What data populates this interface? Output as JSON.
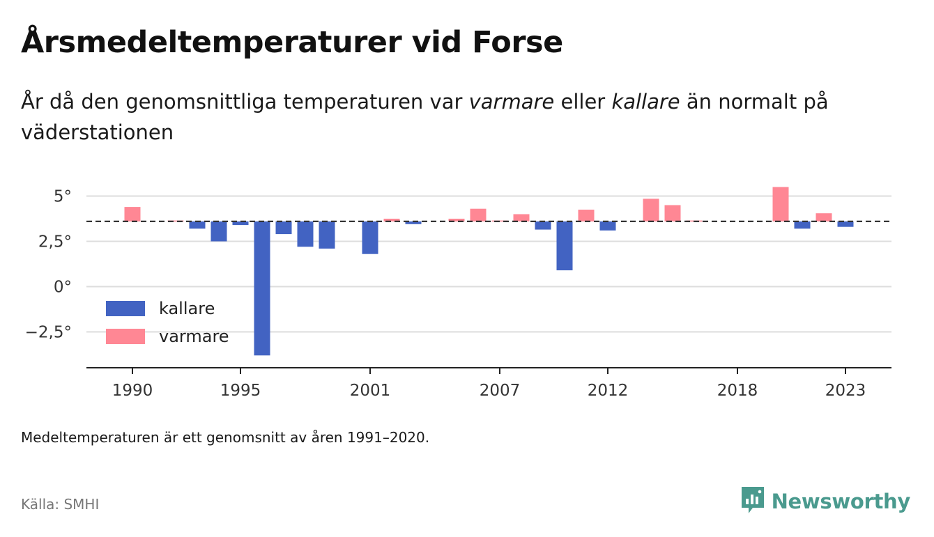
{
  "title": "Årsmedeltemperaturer vid Forse",
  "subtitle": {
    "part1": "År då den genomsnittliga temperaturen var ",
    "warm_word": "varmare",
    "part2": " eller ",
    "cold_word": "kallare",
    "part3": " än normalt på väderstationen"
  },
  "note": "Medeltemperaturen är ett genomsnitt av åren 1991–2020.",
  "source": "Källa: SMHI",
  "brand": {
    "name": "Newsworthy",
    "icon": "newsworthy-logo-icon"
  },
  "colors": {
    "cold": "#4263c2",
    "warm": "#ff8794",
    "grid": "#dddddd",
    "axis": "#222222",
    "brand": "#4a9a8e"
  },
  "chart_data": {
    "type": "bar",
    "baseline": 3.6,
    "baseline_style": "dashed",
    "ylim": [
      -4.5,
      5.5
    ],
    "yticks": [
      -2.5,
      0,
      2.5,
      5
    ],
    "ytick_labels": [
      "−2,5°",
      "0°",
      "2,5°",
      "5°"
    ],
    "xticks": [
      1990,
      1995,
      2001,
      2007,
      2012,
      2018,
      2023
    ],
    "xtick_labels": [
      "1990",
      "1995",
      "2001",
      "2007",
      "2012",
      "2018",
      "2023"
    ],
    "grid": true,
    "legend_position": "bottom-left",
    "legend": [
      {
        "key": "cold",
        "label": "kallare"
      },
      {
        "key": "warm",
        "label": "varmare"
      }
    ],
    "years": [
      1990,
      1991,
      1992,
      1993,
      1994,
      1995,
      1996,
      1997,
      1998,
      1999,
      2000,
      2001,
      2002,
      2003,
      2004,
      2005,
      2006,
      2007,
      2008,
      2009,
      2010,
      2011,
      2012,
      2013,
      2014,
      2015,
      2016,
      2017,
      2018,
      2019,
      2020,
      2021,
      2022,
      2023
    ],
    "values": [
      4.4,
      null,
      3.65,
      3.2,
      2.5,
      3.4,
      -3.8,
      2.9,
      2.2,
      2.1,
      null,
      1.8,
      3.75,
      3.45,
      null,
      3.75,
      4.3,
      3.65,
      4.0,
      3.15,
      0.9,
      4.25,
      3.1,
      null,
      4.85,
      4.5,
      3.65,
      null,
      null,
      null,
      5.5,
      3.2,
      4.05,
      3.3
    ]
  }
}
